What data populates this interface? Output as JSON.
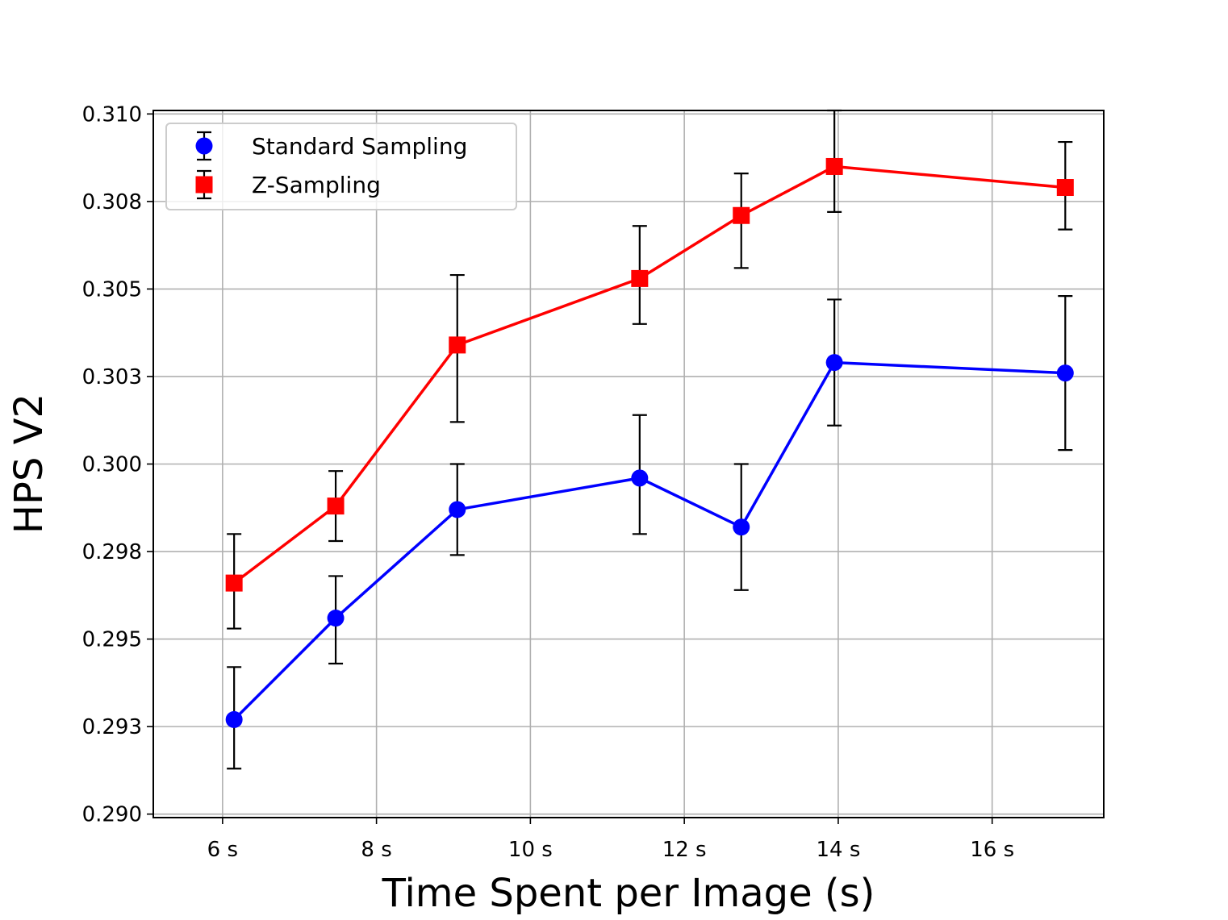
{
  "chart_data": {
    "type": "line",
    "xlabel": "Time Spent per Image (s)",
    "ylabel": "HPS V2",
    "xlim": [
      5.1,
      17.45
    ],
    "ylim": [
      0.2899,
      0.3101
    ],
    "x_ticks": [
      6,
      8,
      10,
      12,
      14,
      16
    ],
    "x_tick_labels": [
      "6 s",
      "8 s",
      "10 s",
      "12 s",
      "14 s",
      "16 s"
    ],
    "y_ticks": [
      0.29,
      0.2925,
      0.295,
      0.2975,
      0.3,
      0.3025,
      0.305,
      0.3075,
      0.31
    ],
    "y_tick_labels": [
      "0.290",
      "0.293",
      "0.295",
      "0.298",
      "0.300",
      "0.303",
      "0.305",
      "0.308",
      "0.310"
    ],
    "grid": true,
    "legend_position": "top-left",
    "series": [
      {
        "name": "Standard Sampling",
        "color": "#0000ff",
        "marker": "circle",
        "x": [
          6.15,
          7.47,
          9.05,
          11.42,
          12.74,
          13.95,
          16.95
        ],
        "y": [
          0.2927,
          0.2956,
          0.2987,
          0.2996,
          0.2982,
          0.3029,
          0.3026
        ],
        "err_low": [
          0.2913,
          0.2943,
          0.2974,
          0.298,
          0.2964,
          0.3011,
          0.3004
        ],
        "err_high": [
          0.2942,
          0.2968,
          0.3,
          0.3014,
          0.3,
          0.3047,
          0.3048
        ]
      },
      {
        "name": "Z-Sampling",
        "color": "#ff0000",
        "marker": "square",
        "x": [
          6.15,
          7.47,
          9.05,
          11.42,
          12.74,
          13.95,
          16.95
        ],
        "y": [
          0.2966,
          0.2988,
          0.3034,
          0.3053,
          0.3071,
          0.3085,
          0.3079
        ],
        "err_low": [
          0.2953,
          0.2978,
          0.3012,
          0.304,
          0.3056,
          0.3072,
          0.3067
        ],
        "err_high": [
          0.298,
          0.2998,
          0.3054,
          0.3068,
          0.3083,
          0.3101,
          0.3092
        ]
      }
    ]
  }
}
